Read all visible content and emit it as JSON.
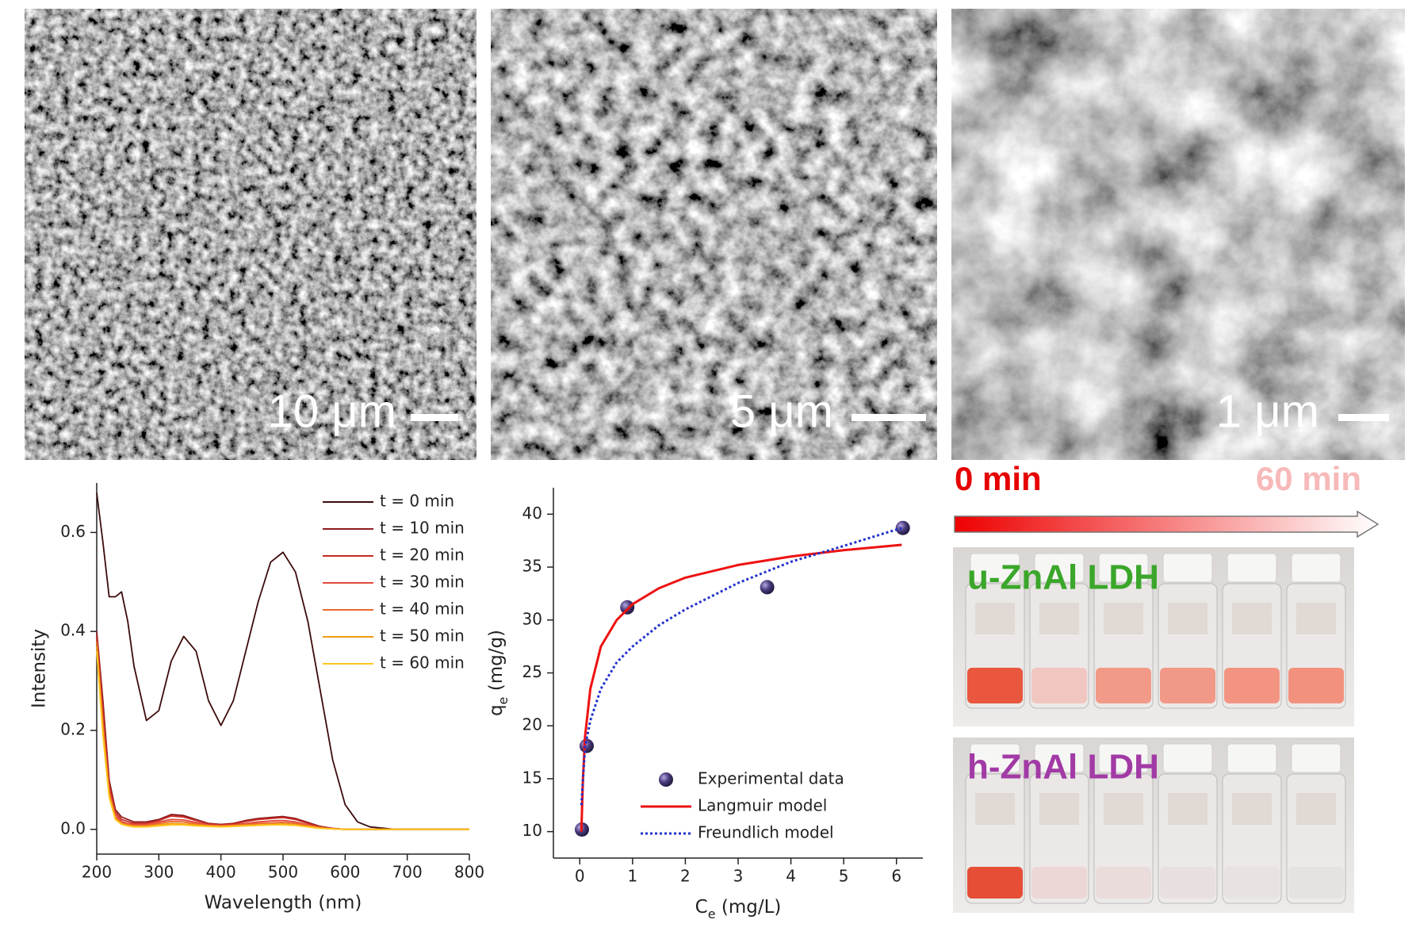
{
  "chart_data": [
    {
      "type": "line",
      "xlabel": "Wavelength (nm)",
      "ylabel": "Intensity",
      "x": [
        200,
        210,
        220,
        230,
        240,
        250,
        260,
        280,
        300,
        320,
        340,
        360,
        380,
        400,
        420,
        440,
        460,
        480,
        500,
        520,
        540,
        560,
        580,
        600,
        620,
        640,
        680,
        720,
        760,
        800
      ],
      "xlim": [
        200,
        800
      ],
      "xticks": [
        200,
        300,
        400,
        500,
        600,
        700,
        800
      ],
      "ylim": [
        -0.05,
        0.7
      ],
      "yticks": [
        {
          "value": 0,
          "label": "0.0"
        },
        0.2,
        0.4,
        0.6
      ],
      "legend": "upper right",
      "series": [
        {
          "name": "t = 0 min",
          "color": "#3d0b0b",
          "values": [
            0.68,
            0.58,
            0.47,
            0.47,
            0.48,
            0.42,
            0.33,
            0.22,
            0.24,
            0.34,
            0.39,
            0.36,
            0.26,
            0.21,
            0.26,
            0.36,
            0.46,
            0.54,
            0.56,
            0.52,
            0.42,
            0.28,
            0.14,
            0.05,
            0.015,
            0.005,
            0,
            0,
            0,
            0
          ]
        },
        {
          "name": "t = 10 min",
          "color": "#8e1c1c",
          "values": [
            0.4,
            0.26,
            0.1,
            0.04,
            0.025,
            0.02,
            0.015,
            0.015,
            0.02,
            0.03,
            0.028,
            0.02,
            0.012,
            0.01,
            0.012,
            0.018,
            0.022,
            0.024,
            0.026,
            0.022,
            0.014,
            0.006,
            0.002,
            0,
            0,
            0,
            0,
            0,
            0,
            0
          ]
        },
        {
          "name": "t = 20 min",
          "color": "#c42a22",
          "values": [
            0.39,
            0.24,
            0.09,
            0.035,
            0.02,
            0.016,
            0.012,
            0.012,
            0.018,
            0.027,
            0.025,
            0.018,
            0.011,
            0.009,
            0.011,
            0.016,
            0.02,
            0.022,
            0.024,
            0.02,
            0.012,
            0.005,
            0.002,
            0,
            0,
            0,
            0,
            0,
            0,
            0
          ]
        },
        {
          "name": "t = 30 min",
          "color": "#e24a3e",
          "values": [
            0.38,
            0.22,
            0.08,
            0.03,
            0.016,
            0.012,
            0.01,
            0.01,
            0.015,
            0.02,
            0.019,
            0.014,
            0.009,
            0.008,
            0.009,
            0.012,
            0.015,
            0.017,
            0.018,
            0.015,
            0.009,
            0.004,
            0.001,
            0,
            0,
            0,
            0,
            0,
            0,
            0
          ]
        },
        {
          "name": "t = 40 min",
          "color": "#ea6a2a",
          "values": [
            0.38,
            0.21,
            0.075,
            0.025,
            0.013,
            0.01,
            0.008,
            0.008,
            0.012,
            0.016,
            0.015,
            0.011,
            0.008,
            0.007,
            0.008,
            0.01,
            0.012,
            0.013,
            0.014,
            0.012,
            0.008,
            0.003,
            0.001,
            0,
            0,
            0,
            0,
            0,
            0,
            0
          ]
        },
        {
          "name": "t = 50 min",
          "color": "#f09a10",
          "values": [
            0.37,
            0.2,
            0.07,
            0.022,
            0.011,
            0.008,
            0.006,
            0.006,
            0.009,
            0.012,
            0.011,
            0.009,
            0.007,
            0.006,
            0.007,
            0.008,
            0.009,
            0.01,
            0.011,
            0.009,
            0.006,
            0.003,
            0.001,
            0,
            0,
            0,
            0,
            0,
            0,
            0
          ]
        },
        {
          "name": "t = 60 min",
          "color": "#ffc61e",
          "values": [
            0.36,
            0.19,
            0.065,
            0.02,
            0.01,
            0.007,
            0.005,
            0.005,
            0.007,
            0.009,
            0.009,
            0.007,
            0.006,
            0.005,
            0.006,
            0.007,
            0.008,
            0.009,
            0.009,
            0.008,
            0.005,
            0.002,
            0.001,
            0,
            0,
            0,
            0,
            0,
            0,
            0
          ]
        }
      ]
    },
    {
      "type": "scatter",
      "xlabel": [
        "C",
        "e",
        " (mg/L)"
      ],
      "ylabel": [
        "q",
        "e",
        " (mg/g)"
      ],
      "xlim": [
        -0.5,
        6.5
      ],
      "xticks": [
        0,
        1,
        2,
        3,
        4,
        5,
        6
      ],
      "ylim": [
        7.5,
        42.5
      ],
      "yticks": [
        10,
        15,
        20,
        25,
        30,
        35,
        40
      ],
      "legend": "lower right",
      "series": [
        {
          "name": "Experimental data",
          "mode": "markers",
          "color": "#4a3b7c",
          "x": [
            0.04,
            0.13,
            0.9,
            3.55,
            6.12
          ],
          "values": [
            10.2,
            18.1,
            31.2,
            33.1,
            38.7
          ]
        },
        {
          "name": "Langmuir model",
          "mode": "line",
          "color": "#ee1111",
          "x": [
            0.03,
            0.06,
            0.1,
            0.2,
            0.4,
            0.7,
            1,
            1.5,
            2,
            3,
            4,
            5,
            6.1
          ],
          "values": [
            10,
            15,
            19,
            23.5,
            27.5,
            30,
            31.5,
            33,
            34,
            35.2,
            36,
            36.6,
            37.1
          ]
        },
        {
          "name": "Freundlich model",
          "mode": "line",
          "dash": true,
          "color": "#2233cc",
          "x": [
            0.03,
            0.1,
            0.2,
            0.4,
            0.7,
            1,
            1.5,
            2,
            3,
            4,
            5,
            6.1
          ],
          "values": [
            12.5,
            18,
            20.5,
            23.5,
            26,
            27.5,
            29.5,
            31,
            33.5,
            35.5,
            37,
            38.7
          ]
        }
      ]
    }
  ],
  "micrographs": [
    {
      "scale_bar": "10 μm"
    },
    {
      "scale_bar": "5 μm"
    },
    {
      "scale_bar": "1 μm"
    }
  ],
  "color_bar": {
    "start": "0 min",
    "end": "60 min"
  },
  "photos": [
    {
      "label": "u-ZnAl LDH"
    },
    {
      "label": "h-ZnAl LDH"
    }
  ]
}
